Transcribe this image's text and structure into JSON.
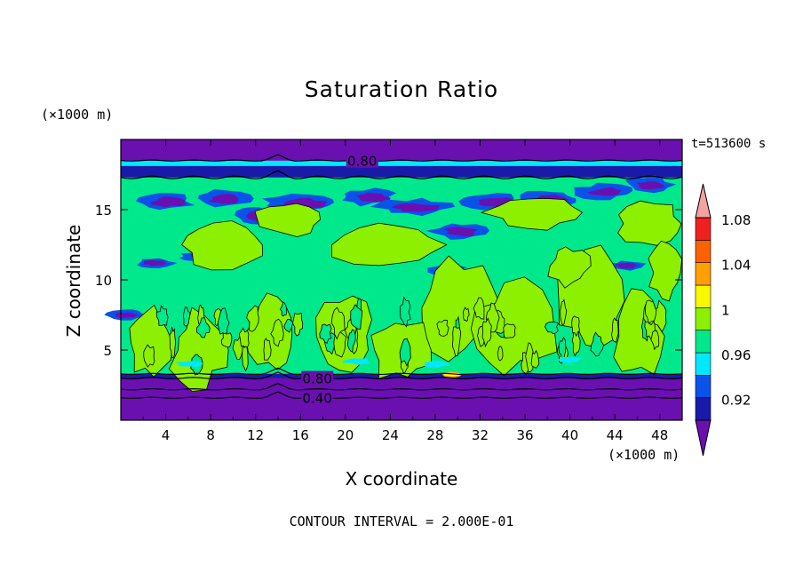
{
  "chart_data": {
    "type": "heatmap",
    "title": "Saturation Ratio",
    "xlabel": "X coordinate",
    "ylabel": "Z coordinate",
    "x_unit": "(×1000 m)",
    "y_unit": "(×1000 m)",
    "time_label": "t=513600 s",
    "footer": "CONTOUR INTERVAL = 2.000E-01",
    "xlim": [
      0,
      50
    ],
    "ylim": [
      0,
      20
    ],
    "x_ticks": [
      4,
      8,
      12,
      16,
      20,
      24,
      28,
      32,
      36,
      40,
      44,
      48
    ],
    "y_ticks": [
      5,
      10,
      15
    ],
    "colorbar": {
      "levels": [
        0.92,
        0.94,
        0.96,
        0.98,
        1.0,
        1.02,
        1.04,
        1.06,
        1.08,
        1.1
      ],
      "labels": [
        "0.92",
        "0.96",
        "1",
        "1.04",
        "1.08"
      ],
      "colors": [
        "#6a0fb0",
        "#1a1aa8",
        "#0a52e8",
        "#00e8ff",
        "#00e88c",
        "#8cf000",
        "#f8f800",
        "#ffa000",
        "#ff6000",
        "#f02020",
        "#f4a2a2"
      ]
    },
    "layers": [
      {
        "z": [
          0,
          3
        ],
        "value": "< 0.92"
      },
      {
        "z": [
          3,
          3.3
        ],
        "value": "0.92-0.96"
      },
      {
        "z": [
          3.3,
          17.3
        ],
        "value": "0.98-1.02"
      },
      {
        "z": [
          17.3,
          18.3
        ],
        "value": "0.92-0.98"
      },
      {
        "z": [
          18.3,
          20
        ],
        "value": "< 0.92"
      }
    ],
    "contour_labels": [
      {
        "text": "0.80",
        "x": 21.5,
        "z": 18.5
      },
      {
        "text": "0.80",
        "x": 17.5,
        "z": 3.0
      },
      {
        "text": "0.40",
        "x": 17.5,
        "z": 1.6
      }
    ]
  }
}
